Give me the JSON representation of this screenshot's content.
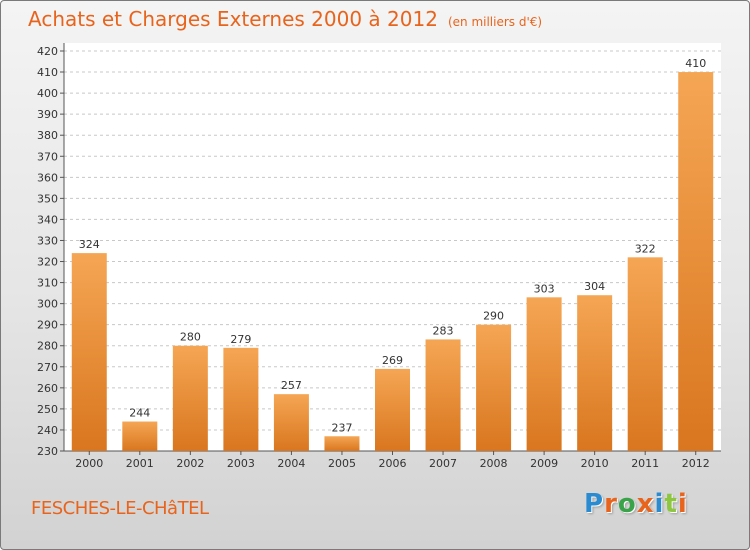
{
  "title": "Achats et Charges Externes 2000 à 2012",
  "subtitle": "(en milliers d'€)",
  "place_name": "FESCHES-LE-CHâTEL",
  "brand": {
    "letters": [
      "P",
      "r",
      "o",
      "x",
      "i",
      "t",
      "i"
    ],
    "colors": [
      "#2a8bd0",
      "#e8641c",
      "#3aa34a",
      "#e8641c",
      "#2a8bd0",
      "#8dc63f",
      "#e8641c"
    ]
  },
  "colors": {
    "title": "#e8641c",
    "bar_top": "#f5a654",
    "bar_bottom": "#d9761f",
    "grid": "#c8c8c8"
  },
  "chart_data": {
    "type": "bar",
    "categories": [
      "2000",
      "2001",
      "2002",
      "2003",
      "2004",
      "2005",
      "2006",
      "2007",
      "2008",
      "2009",
      "2010",
      "2011",
      "2012"
    ],
    "values": [
      324,
      244,
      280,
      279,
      257,
      237,
      269,
      283,
      290,
      303,
      304,
      322,
      410
    ],
    "ylim": [
      230,
      420
    ],
    "ytick_step": 10,
    "grid": true
  }
}
